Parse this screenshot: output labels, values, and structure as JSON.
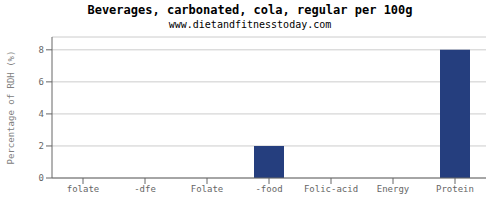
{
  "chart_data": {
    "type": "bar",
    "title": "Beverages, carbonated, cola, regular per 100g",
    "subtitle": "www.dietandfitnesstoday.com",
    "ylabel": "Percentage of RDH (%)",
    "categories": [
      "folate",
      "-dfe",
      "Folate",
      "-food",
      "Folic-acid",
      "Energy",
      "Protein"
    ],
    "values": [
      0,
      0,
      0,
      2,
      0,
      0,
      8
    ],
    "color": "#253E7E",
    "ylim": [
      0,
      8.8
    ],
    "yticks": [
      0,
      2,
      4,
      6,
      8
    ],
    "grid": true
  }
}
